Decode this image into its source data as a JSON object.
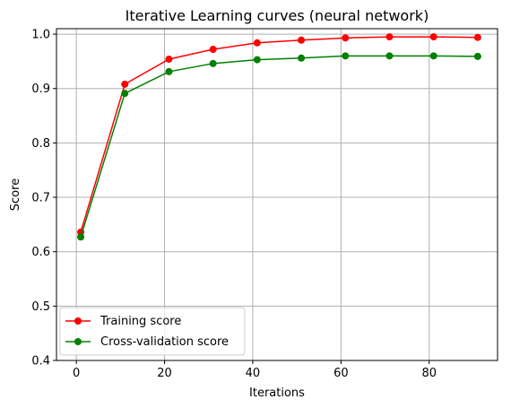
{
  "chart_data": {
    "type": "line",
    "title": "Iterative Learning curves (neural network)",
    "xlabel": "Iterations",
    "ylabel": "Score",
    "xlim": [
      -4.5,
      95.5
    ],
    "ylim": [
      0.4,
      1.01
    ],
    "xticks": [
      "0",
      "20",
      "40",
      "60",
      "80"
    ],
    "xtick_values": [
      0,
      20,
      40,
      60,
      80
    ],
    "yticks": [
      "0.4",
      "0.5",
      "0.6",
      "0.7",
      "0.8",
      "0.9",
      "1.0"
    ],
    "ytick_values": [
      0.4,
      0.5,
      0.6,
      0.7,
      0.8,
      0.9,
      1.0
    ],
    "grid": true,
    "legend_position": "lower-left",
    "x": [
      1,
      11,
      21,
      31,
      41,
      51,
      61,
      71,
      81,
      91
    ],
    "series": [
      {
        "name": "Training score",
        "color": "#ff0000",
        "marker": "circle",
        "values": [
          0.636,
          0.908,
          0.954,
          0.972,
          0.984,
          0.989,
          0.993,
          0.995,
          0.995,
          0.994
        ]
      },
      {
        "name": "Cross-validation score",
        "color": "#008000",
        "marker": "circle",
        "values": [
          0.627,
          0.891,
          0.931,
          0.946,
          0.953,
          0.956,
          0.96,
          0.96,
          0.96,
          0.959
        ]
      }
    ]
  }
}
